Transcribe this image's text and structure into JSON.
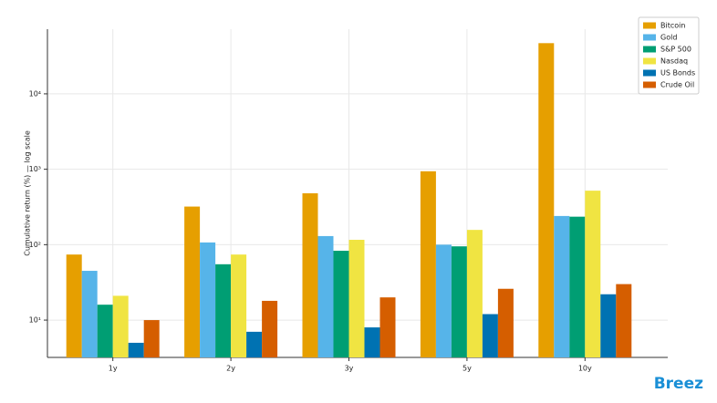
{
  "chart_data": {
    "type": "bar",
    "ylabel": "Cumulative return (%) — log scale",
    "categories": [
      "1y",
      "2y",
      "3y",
      "5y",
      "10y"
    ],
    "series": [
      {
        "name": "Bitcoin",
        "color": "#e69f00",
        "values": [
          74,
          320,
          480,
          940,
          47000
        ]
      },
      {
        "name": "Gold",
        "color": "#56b4e9",
        "values": [
          45,
          107,
          130,
          100,
          240
        ]
      },
      {
        "name": "S&P 500",
        "color": "#009e73",
        "values": [
          16,
          55,
          83,
          95,
          235
        ]
      },
      {
        "name": "Nasdaq",
        "color": "#f0e442",
        "values": [
          21,
          74,
          116,
          157,
          520
        ]
      },
      {
        "name": "US Bonds",
        "color": "#0072b2",
        "values": [
          5,
          7,
          8,
          12,
          22
        ]
      },
      {
        "name": "Crude Oil",
        "color": "#d55e00",
        "values": [
          10,
          18,
          20,
          26,
          30
        ]
      }
    ],
    "log_y": true,
    "ylim": [
      3.2,
      72000
    ],
    "yticks": [
      {
        "value": 10,
        "label": "10¹"
      },
      {
        "value": 100,
        "label": "10²"
      },
      {
        "value": 1000,
        "label": "10³"
      },
      {
        "value": 10000,
        "label": "10⁴"
      }
    ],
    "grid": true,
    "legend": "upper right",
    "logo": "Breez"
  }
}
